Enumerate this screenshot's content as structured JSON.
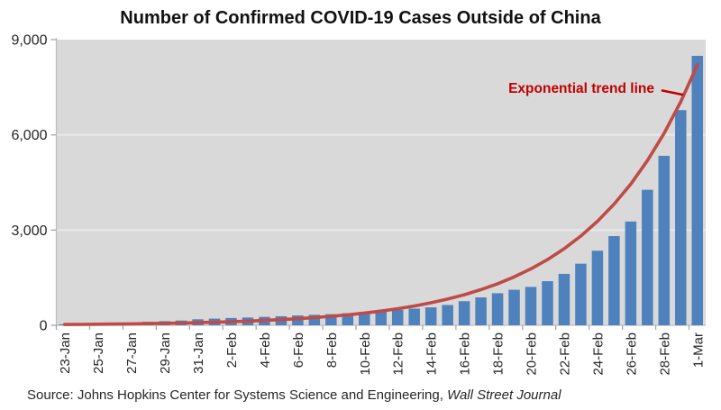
{
  "title": "Number of Confirmed COVID-19 Cases Outside of China",
  "source": {
    "prefix": "Source: Johns Hopkins Center for Systems Science and Engineering, ",
    "publication": "Wall Street Journal"
  },
  "chart_data": {
    "type": "bar",
    "title": "Number of Confirmed COVID-19 Cases Outside of China",
    "categories": [
      "23-Jan",
      "24-Jan",
      "25-Jan",
      "26-Jan",
      "27-Jan",
      "28-Jan",
      "29-Jan",
      "30-Jan",
      "31-Jan",
      "1-Feb",
      "2-Feb",
      "3-Feb",
      "4-Feb",
      "5-Feb",
      "6-Feb",
      "7-Feb",
      "8-Feb",
      "9-Feb",
      "10-Feb",
      "11-Feb",
      "12-Feb",
      "13-Feb",
      "14-Feb",
      "15-Feb",
      "16-Feb",
      "17-Feb",
      "18-Feb",
      "19-Feb",
      "20-Feb",
      "21-Feb",
      "22-Feb",
      "23-Feb",
      "24-Feb",
      "25-Feb",
      "26-Feb",
      "27-Feb",
      "28-Feb",
      "29-Feb",
      "1-Mar"
    ],
    "values": [
      30,
      40,
      55,
      65,
      85,
      110,
      130,
      150,
      190,
      210,
      230,
      245,
      265,
      285,
      310,
      330,
      350,
      380,
      420,
      455,
      485,
      525,
      565,
      640,
      760,
      880,
      1010,
      1120,
      1210,
      1390,
      1620,
      1940,
      2350,
      2810,
      3270,
      4270,
      5340,
      6780,
      8490
    ],
    "x_axis": {
      "label_every": 2,
      "labels_shown": [
        "23-Jan",
        "25-Jan",
        "27-Jan",
        "29-Jan",
        "31-Jan",
        "2-Feb",
        "4-Feb",
        "6-Feb",
        "8-Feb",
        "10-Feb",
        "12-Feb",
        "14-Feb",
        "16-Feb",
        "18-Feb",
        "20-Feb",
        "22-Feb",
        "24-Feb",
        "26-Feb",
        "28-Feb",
        "1-Mar"
      ],
      "label_rotation_deg": -90
    },
    "y_axis": {
      "min": 0,
      "max": 9000,
      "ticks": [
        0,
        3000,
        6000,
        9000
      ],
      "tick_labels": [
        "0",
        "3,000",
        "6,000",
        "9,000"
      ]
    },
    "grid": "horizontal",
    "legend": "none",
    "annotation": {
      "text": "Exponential trend line",
      "color": "#C00000"
    },
    "trendline": {
      "type": "exponential",
      "label": "Exponential trend line",
      "start_value": 24.5,
      "growth_rate_per_day": 0.153,
      "color": "#BE4B48"
    },
    "colors": {
      "bar": "#4F81BD",
      "plot_background": "#D9D9D9",
      "gridline": "#E9E9E9",
      "axis": "#A6A6A6",
      "axis_line": "#BFBFBF",
      "text": "#262626"
    }
  }
}
